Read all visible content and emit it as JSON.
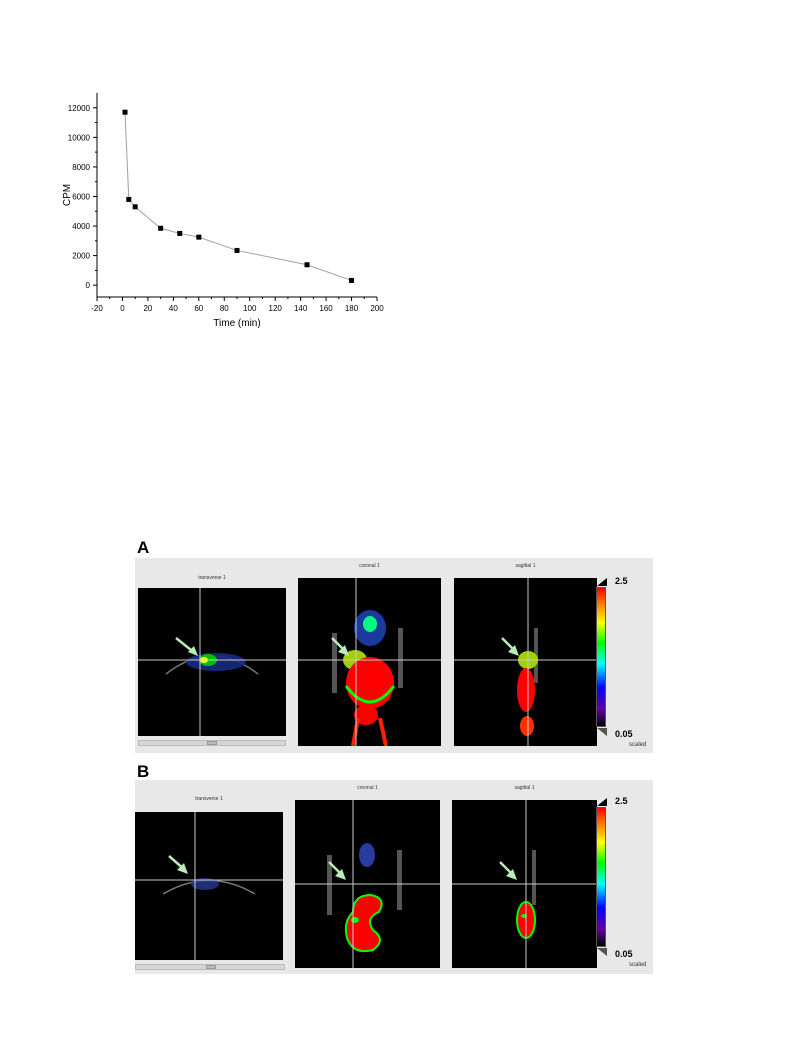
{
  "chart_data": {
    "type": "line",
    "xlabel": "Time (min)",
    "ylabel": "CPM",
    "xlim": [
      -20,
      200
    ],
    "ylim": [
      -800,
      13000
    ],
    "x_ticks": [
      -20,
      0,
      20,
      40,
      60,
      80,
      100,
      120,
      140,
      160,
      180,
      200
    ],
    "y_ticks": [
      0,
      2000,
      4000,
      6000,
      8000,
      10000,
      12000
    ],
    "x": [
      2,
      5,
      10,
      30,
      45,
      60,
      90,
      145,
      180
    ],
    "values": [
      11700,
      5800,
      5300,
      3850,
      3500,
      3250,
      2350,
      1380,
      320
    ],
    "marker": "square",
    "line_color": "#a0a0a0",
    "marker_color": "#000000"
  },
  "figures": [
    {
      "letter": "A",
      "views": [
        "transverse 1",
        "coronal 1",
        "sagittal 1"
      ],
      "colorbar": {
        "max": "2.5",
        "min": "0.05",
        "mode": "scaled"
      }
    },
    {
      "letter": "B",
      "views": [
        "transverse 1",
        "coronal 1",
        "sagittal 1"
      ],
      "colorbar": {
        "max": "2.5",
        "min": "0.05",
        "mode": "scaled"
      }
    }
  ]
}
